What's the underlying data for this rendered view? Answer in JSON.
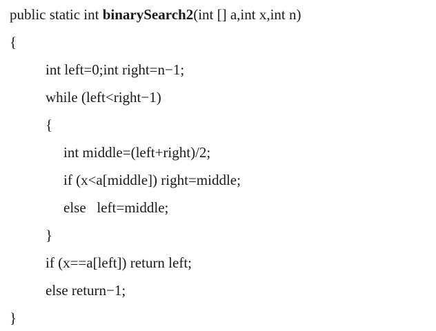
{
  "code": {
    "lines": [
      {
        "before": "public static int ",
        "bold": "binarySearch2",
        "after": "(int [] a,int x,int n)"
      },
      {
        "text": "{"
      },
      {
        "text": "int left=0;int right=n−1;"
      },
      {
        "text": "while (left<right−1)"
      },
      {
        "text": "{"
      },
      {
        "text": "int middle=(left+right)/2;"
      },
      {
        "text": "if (x<a[middle]) right=middle;"
      },
      {
        "text": "else   left=middle;"
      },
      {
        "text": "}"
      },
      {
        "text": "if (x==a[left]) return left;"
      },
      {
        "text": "else return−1;"
      },
      {
        "text": "}"
      }
    ]
  }
}
